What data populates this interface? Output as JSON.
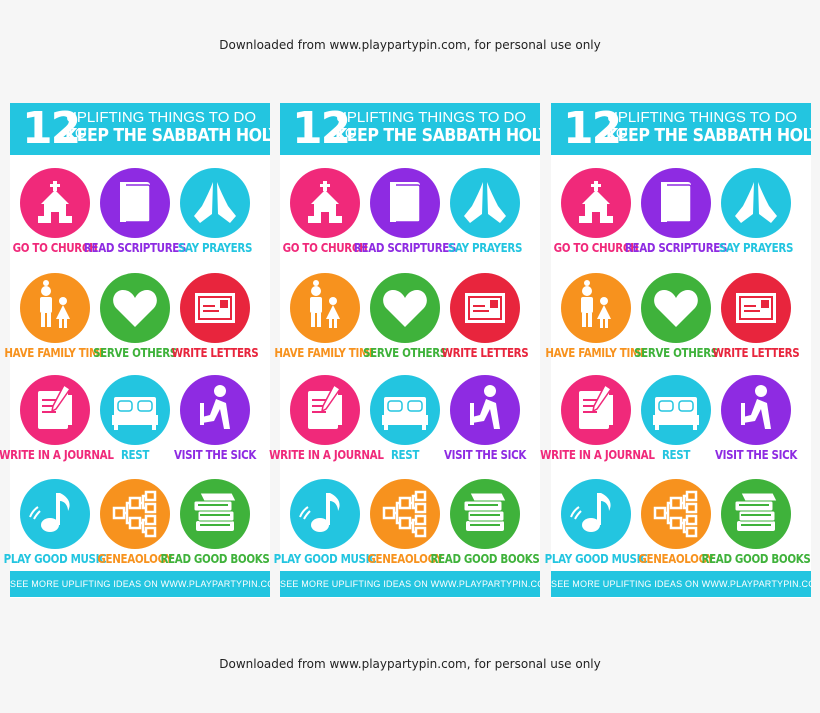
{
  "notice_top": "Downloaded from www.playpartypin.com, for personal use only",
  "notice_bottom": "Downloaded from www.playpartypin.com, for personal use only",
  "card": {
    "number": "12",
    "title_line1": "UPLIFTING THINGS TO DO TO",
    "title_line2": "KEEP THE SABBATH HOLY",
    "footer": "SEE MORE UPLIFTING IDEAS ON WWW.PLAYPARTYPIN.COM",
    "items": [
      {
        "label": "GO TO CHURCH",
        "color": "#f0297a",
        "icon": "church-icon"
      },
      {
        "label": "READ SCRIPTURES",
        "color": "#8e2be2",
        "icon": "book-icon"
      },
      {
        "label": "SAY PRAYERS",
        "color": "#23c5e0",
        "icon": "praying-hands-icon"
      },
      {
        "label": "HAVE FAMILY TIME",
        "color": "#f7921e",
        "icon": "family-icon"
      },
      {
        "label": "SERVE OTHERS",
        "color": "#3fb23b",
        "icon": "heart-icon"
      },
      {
        "label": "WRITE LETTERS",
        "color": "#e8253d",
        "icon": "envelope-icon"
      },
      {
        "label": "WRITE IN A JOURNAL",
        "color": "#f0297a",
        "icon": "journal-icon"
      },
      {
        "label": "REST",
        "color": "#23c5e0",
        "icon": "bed-icon"
      },
      {
        "label": "VISIT THE SICK",
        "color": "#8e2be2",
        "icon": "kneeling-person-icon"
      },
      {
        "label": "PLAY GOOD MUSIC",
        "color": "#23c5e0",
        "icon": "music-note-icon"
      },
      {
        "label": "GENEAOLOGY",
        "color": "#f7921e",
        "icon": "family-tree-icon"
      },
      {
        "label": "READ GOOD BOOKS",
        "color": "#3fb23b",
        "icon": "book-stack-icon"
      }
    ]
  }
}
